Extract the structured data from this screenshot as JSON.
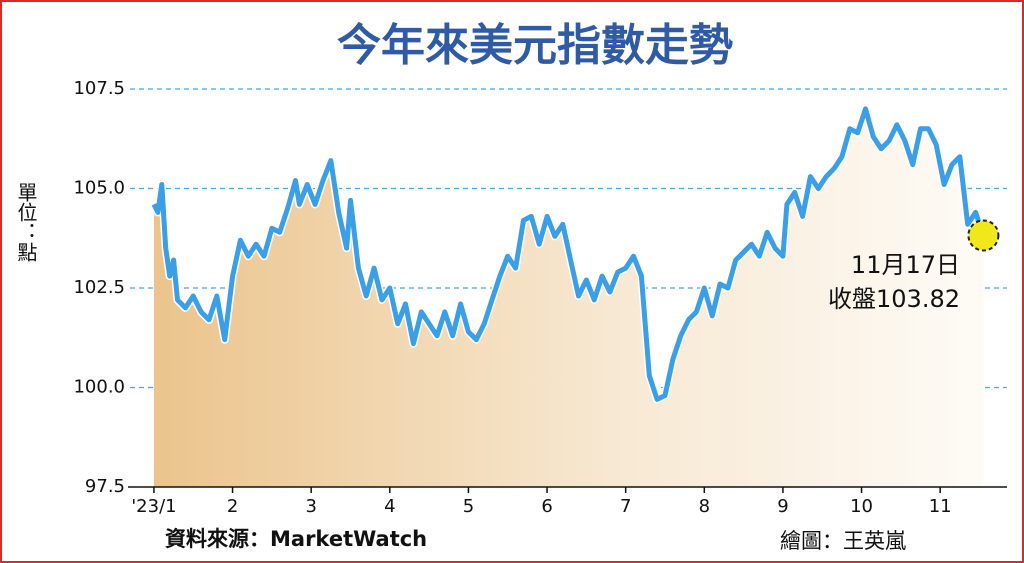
{
  "chart_data": {
    "type": "line",
    "title": "今年來美元指數走勢",
    "y_axis_label": "單位：點",
    "source": "資料來源：MarketWatch",
    "credit": "繪圖：王英嵐",
    "annotations": [
      "11月17日",
      "收盤103.82"
    ],
    "color": "#3a9fe6",
    "grid": true,
    "xlim": [
      0.95,
      11.85
    ],
    "xticks": [
      {
        "value": 1,
        "label": "'23/1"
      },
      2,
      3,
      4,
      5,
      6,
      7,
      8,
      9,
      10,
      11
    ],
    "ylim": [
      97.5,
      107.5
    ],
    "yticks": [
      97.5,
      {
        "value": 100,
        "label": "100.0"
      },
      102.5,
      {
        "value": 105,
        "label": "105.0"
      },
      107.5
    ],
    "x": [
      1.0,
      1.05,
      1.1,
      1.15,
      1.2,
      1.25,
      1.3,
      1.4,
      1.5,
      1.6,
      1.7,
      1.8,
      1.9,
      2.0,
      2.1,
      2.2,
      2.3,
      2.4,
      2.5,
      2.6,
      2.7,
      2.8,
      2.85,
      2.95,
      3.05,
      3.15,
      3.25,
      3.35,
      3.45,
      3.5,
      3.6,
      3.7,
      3.8,
      3.9,
      4.0,
      4.1,
      4.2,
      4.3,
      4.4,
      4.5,
      4.6,
      4.7,
      4.8,
      4.9,
      5.0,
      5.1,
      5.2,
      5.3,
      5.4,
      5.5,
      5.6,
      5.7,
      5.8,
      5.9,
      6.0,
      6.1,
      6.2,
      6.3,
      6.4,
      6.5,
      6.6,
      6.7,
      6.8,
      6.9,
      7.0,
      7.1,
      7.2,
      7.3,
      7.4,
      7.5,
      7.6,
      7.7,
      7.8,
      7.9,
      8.0,
      8.1,
      8.2,
      8.3,
      8.4,
      8.5,
      8.6,
      8.7,
      8.8,
      8.9,
      9.0,
      9.05,
      9.15,
      9.25,
      9.35,
      9.45,
      9.55,
      9.65,
      9.75,
      9.85,
      9.95,
      10.05,
      10.15,
      10.25,
      10.35,
      10.45,
      10.55,
      10.65,
      10.75,
      10.85,
      10.95,
      11.05,
      11.15,
      11.25,
      11.35,
      11.45,
      11.55
    ],
    "values": [
      104.6,
      104.4,
      105.1,
      103.5,
      102.8,
      103.2,
      102.2,
      102.0,
      102.3,
      101.9,
      101.7,
      102.3,
      101.2,
      102.8,
      103.7,
      103.3,
      103.6,
      103.3,
      104.0,
      103.9,
      104.5,
      105.2,
      104.6,
      105.1,
      104.6,
      105.2,
      105.7,
      104.4,
      103.5,
      104.7,
      103.0,
      102.3,
      103.0,
      102.2,
      102.5,
      101.6,
      102.1,
      101.1,
      101.9,
      101.6,
      101.3,
      101.9,
      101.3,
      102.1,
      101.4,
      101.2,
      101.6,
      102.2,
      102.8,
      103.3,
      103.0,
      104.2,
      104.3,
      103.6,
      104.3,
      103.8,
      104.1,
      103.2,
      102.3,
      102.7,
      102.2,
      102.8,
      102.4,
      102.9,
      103.0,
      103.3,
      102.8,
      100.3,
      99.7,
      99.8,
      100.7,
      101.3,
      101.7,
      101.9,
      102.5,
      101.8,
      102.6,
      102.5,
      103.2,
      103.4,
      103.6,
      103.3,
      103.9,
      103.5,
      103.3,
      104.6,
      104.9,
      104.3,
      105.3,
      105.0,
      105.3,
      105.5,
      105.8,
      106.5,
      106.4,
      107.0,
      106.3,
      106.0,
      106.2,
      106.6,
      106.2,
      105.6,
      106.5,
      106.5,
      106.1,
      105.1,
      105.6,
      105.8,
      104.1,
      104.4,
      103.82
    ]
  }
}
